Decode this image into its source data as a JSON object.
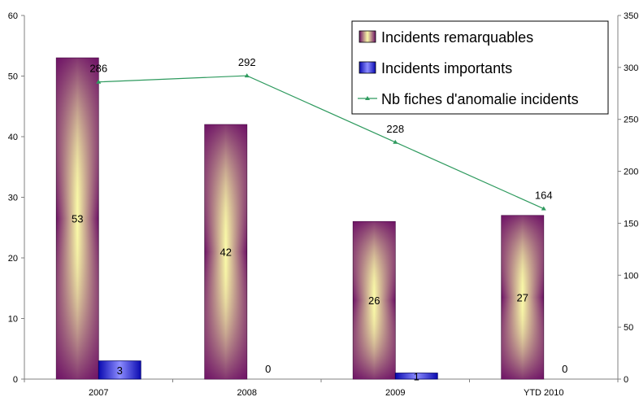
{
  "chart_data": {
    "type": "bar",
    "categories": [
      "2007",
      "2008",
      "2009",
      "YTD 2010"
    ],
    "series": [
      {
        "name": "Incidents remarquables",
        "kind": "bar",
        "axis": "left",
        "values": [
          53,
          42,
          26,
          27
        ],
        "color": "#7a1a6e",
        "highlight": "#fafaa8"
      },
      {
        "name": "Incidents importants",
        "kind": "bar",
        "axis": "left",
        "values": [
          3,
          0,
          1,
          0
        ],
        "color": "#1010d0",
        "highlight": "#8080ff"
      },
      {
        "name": "Nb fiches d'anomalie incidents",
        "kind": "line",
        "axis": "right",
        "values": [
          286,
          292,
          228,
          164
        ],
        "color": "#2e9a5e"
      }
    ],
    "y_left": {
      "min": 0,
      "max": 60,
      "step": 10,
      "ticks": [
        "0",
        "10",
        "20",
        "30",
        "40",
        "50",
        "60"
      ]
    },
    "y_right": {
      "min": 0,
      "max": 350,
      "step": 50,
      "ticks": [
        "0",
        "50",
        "100",
        "150",
        "200",
        "250",
        "300",
        "350"
      ]
    },
    "data_labels": {
      "remarquables": [
        "53",
        "42",
        "26",
        "27"
      ],
      "importants": [
        "3",
        "0",
        "1",
        "0"
      ],
      "fiches": [
        "286",
        "292",
        "228",
        "164"
      ]
    },
    "legend": {
      "position": "top-right",
      "entries": [
        "Incidents remarquables",
        "Incidents importants",
        "Nb fiches d'anomalie incidents"
      ]
    },
    "title": "",
    "xlabel": "",
    "ylabel": ""
  }
}
